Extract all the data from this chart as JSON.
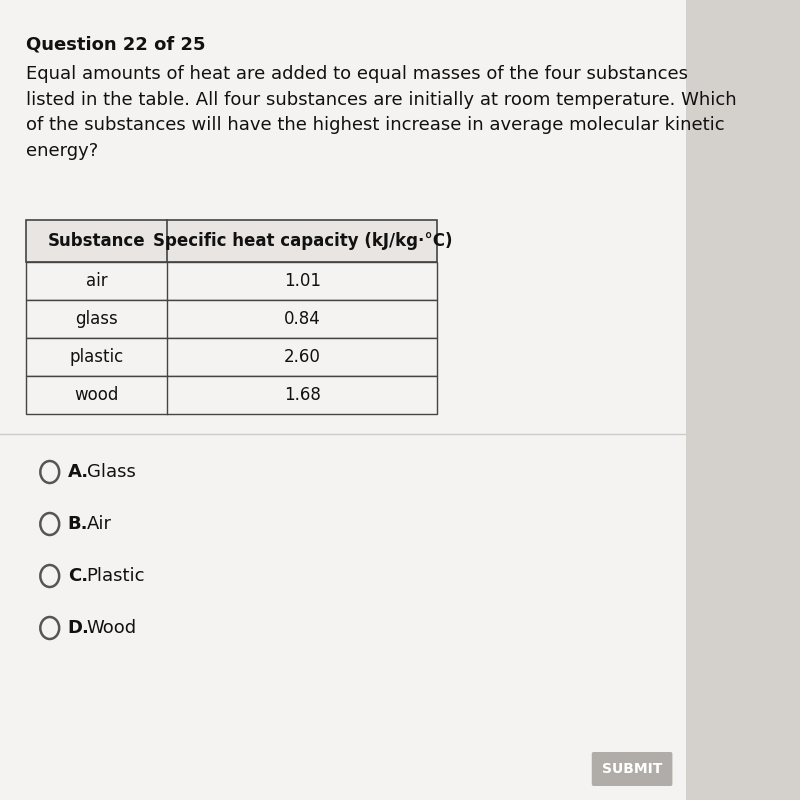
{
  "background_color": "#d4d0cc",
  "page_background": "#f5f3f1",
  "question_number": "Question 22 of 25",
  "question_text": "Equal amounts of heat are added to equal masses of the four substances\nlisted in the table. All four substances are initially at room temperature. Which\nof the substances will have the highest increase in average molecular kinetic\nenergy?",
  "table_header": [
    "Substance",
    "Specific heat capacity (kJ/kg·°C)"
  ],
  "table_data": [
    [
      "air",
      "1.01"
    ],
    [
      "glass",
      "0.84"
    ],
    [
      "plastic",
      "2.60"
    ],
    [
      "wood",
      "1.68"
    ]
  ],
  "choices": [
    {
      "letter": "A.",
      "text": "Glass"
    },
    {
      "letter": "B.",
      "text": "Air"
    },
    {
      "letter": "C.",
      "text": "Plastic"
    },
    {
      "letter": "D.",
      "text": "Wood"
    }
  ],
  "submit_button_text": "SUBMIT",
  "submit_button_color": "#b0ada8",
  "submit_text_color": "#ffffff",
  "question_num_fontsize": 13,
  "question_text_fontsize": 13,
  "table_header_fontsize": 12,
  "table_data_fontsize": 12,
  "choice_fontsize": 13,
  "table_border_color": "#444444",
  "table_header_bg": "#e8e5e2",
  "table_row_bg": "#f5f3f1",
  "divider_color": "#cccccc"
}
